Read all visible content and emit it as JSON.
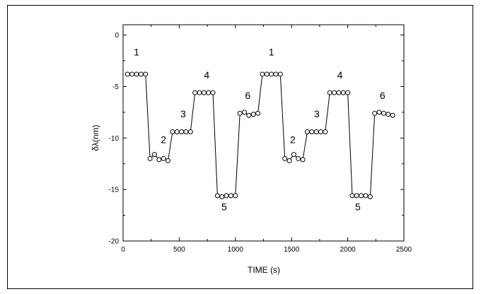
{
  "chart_data": {
    "type": "line",
    "xlabel": "TIME (s)",
    "ylabel": "δλ(nm)",
    "xlim": [
      0,
      2500
    ],
    "ylim": [
      -20,
      1
    ],
    "x_ticks": [
      0,
      500,
      1000,
      1500,
      2000,
      2500
    ],
    "y_ticks": [
      0,
      -5,
      -10,
      -15,
      -20
    ],
    "grid": false,
    "marker": "open-circle",
    "series": [
      {
        "x": [
          40,
          80,
          120,
          160,
          200,
          240,
          280,
          320,
          360,
          400,
          440,
          480,
          520,
          560,
          600,
          640,
          680,
          720,
          760,
          800,
          840,
          880,
          920,
          960,
          1000,
          1040,
          1080,
          1120,
          1160,
          1200,
          1240,
          1280,
          1320,
          1360,
          1400,
          1440,
          1480,
          1520,
          1560,
          1600,
          1640,
          1680,
          1720,
          1760,
          1800,
          1840,
          1880,
          1920,
          1960,
          2000,
          2040,
          2080,
          2120,
          2160,
          2200,
          2240,
          2280,
          2320,
          2360,
          2400
        ],
        "y": [
          -3.8,
          -3.8,
          -3.8,
          -3.8,
          -3.8,
          -12.0,
          -11.6,
          -12.1,
          -12.0,
          -12.2,
          -9.4,
          -9.4,
          -9.4,
          -9.4,
          -9.4,
          -5.6,
          -5.6,
          -5.6,
          -5.6,
          -5.6,
          -15.6,
          -15.7,
          -15.6,
          -15.6,
          -15.6,
          -7.6,
          -7.5,
          -7.8,
          -7.7,
          -7.6,
          -3.8,
          -3.8,
          -3.8,
          -3.8,
          -3.8,
          -12.0,
          -12.2,
          -11.6,
          -12.0,
          -12.1,
          -9.4,
          -9.4,
          -9.4,
          -9.4,
          -9.4,
          -5.6,
          -5.6,
          -5.6,
          -5.6,
          -5.6,
          -15.6,
          -15.6,
          -15.6,
          -15.6,
          -15.7,
          -7.6,
          -7.5,
          -7.6,
          -7.7,
          -7.8
        ]
      }
    ],
    "annotations": [
      {
        "text": "1",
        "x": 120,
        "y": -2.0
      },
      {
        "text": "2",
        "x": 360,
        "y": -10.5
      },
      {
        "text": "3",
        "x": 535,
        "y": -8.0
      },
      {
        "text": "4",
        "x": 745,
        "y": -4.2
      },
      {
        "text": "5",
        "x": 900,
        "y": -17.0
      },
      {
        "text": "6",
        "x": 1110,
        "y": -6.2
      },
      {
        "text": "1",
        "x": 1320,
        "y": -2.0
      },
      {
        "text": "2",
        "x": 1510,
        "y": -10.5
      },
      {
        "text": "3",
        "x": 1725,
        "y": -8.0
      },
      {
        "text": "4",
        "x": 1930,
        "y": -4.2
      },
      {
        "text": "5",
        "x": 2090,
        "y": -17.0
      },
      {
        "text": "6",
        "x": 2310,
        "y": -6.2
      }
    ]
  }
}
